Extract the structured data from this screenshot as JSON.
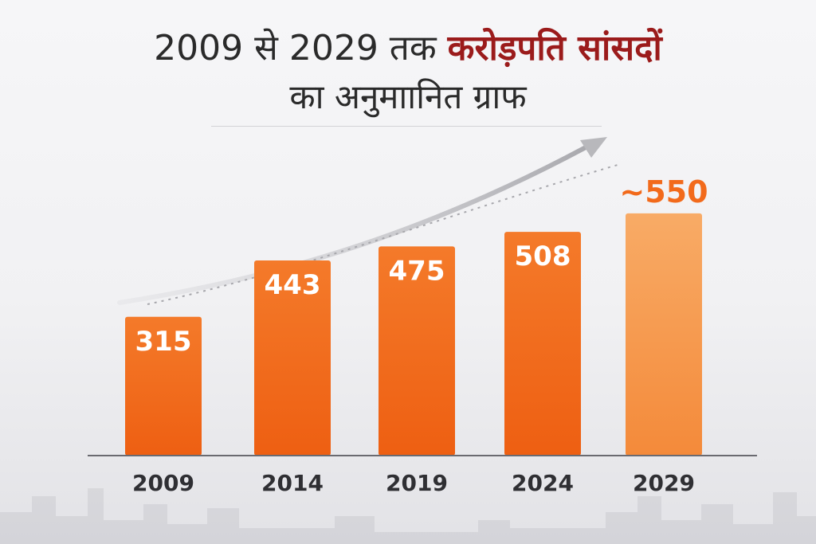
{
  "title": {
    "line1_prefix": "2009 से 2029 तक ",
    "line1_highlight": "करोड़पति सांसदों",
    "line2": "का अनुमाानित ग्राफ"
  },
  "colors": {
    "bar": "#f26a1b",
    "bar_last": "#f7a25a",
    "highlight_text": "#9b1b1b",
    "label_last": "#f26a1b",
    "arrow": "#b8b8bc"
  },
  "chart_data": {
    "type": "bar",
    "categories": [
      "2009",
      "2014",
      "2019",
      "2024",
      "2029"
    ],
    "values": [
      315,
      443,
      475,
      508,
      550
    ],
    "value_labels": [
      "315",
      "443",
      "475",
      "508",
      "~550"
    ],
    "projected": [
      false,
      false,
      false,
      false,
      true
    ],
    "ylim": [
      0,
      600
    ],
    "grid": false,
    "trend_arrow": true
  }
}
